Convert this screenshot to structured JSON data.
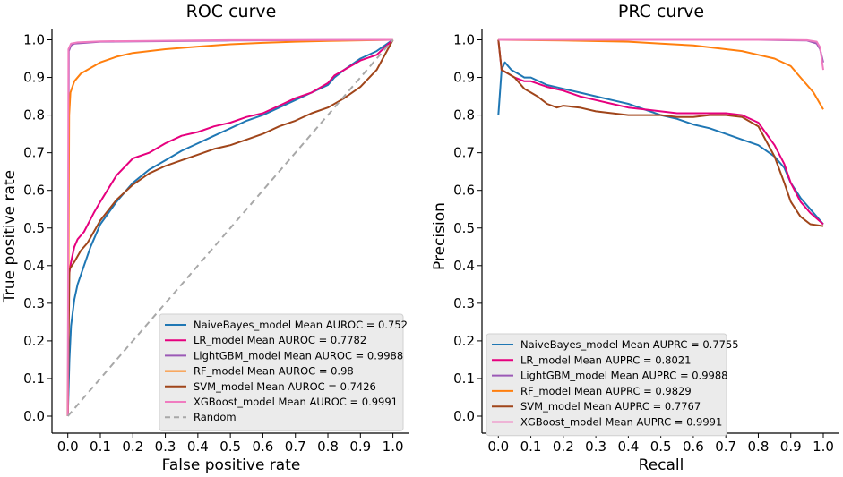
{
  "chart_data": [
    {
      "type": "line",
      "title": "ROC curve",
      "xlabel": "False positive rate",
      "ylabel": "True positive rate",
      "xlim": [
        0,
        1
      ],
      "ylim": [
        0,
        1
      ],
      "x_ticks": [
        "0.0",
        "0.1",
        "0.2",
        "0.3",
        "0.4",
        "0.5",
        "0.6",
        "0.7",
        "0.8",
        "0.9",
        "1.0"
      ],
      "y_ticks": [
        "0.0",
        "0.1",
        "0.2",
        "0.3",
        "0.4",
        "0.5",
        "0.6",
        "0.7",
        "0.8",
        "0.9",
        "1.0"
      ],
      "legend_position": "bottom-right",
      "series": [
        {
          "name": "NaiveBayes_model Mean AUROC = 0.752",
          "color": "#1f77b4",
          "points": [
            [
              0,
              0
            ],
            [
              0.005,
              0.15
            ],
            [
              0.01,
              0.24
            ],
            [
              0.02,
              0.31
            ],
            [
              0.03,
              0.35
            ],
            [
              0.05,
              0.4
            ],
            [
              0.07,
              0.45
            ],
            [
              0.1,
              0.51
            ],
            [
              0.15,
              0.57
            ],
            [
              0.2,
              0.62
            ],
            [
              0.25,
              0.655
            ],
            [
              0.3,
              0.68
            ],
            [
              0.35,
              0.705
            ],
            [
              0.4,
              0.725
            ],
            [
              0.45,
              0.745
            ],
            [
              0.5,
              0.765
            ],
            [
              0.55,
              0.785
            ],
            [
              0.6,
              0.8
            ],
            [
              0.65,
              0.82
            ],
            [
              0.7,
              0.84
            ],
            [
              0.75,
              0.86
            ],
            [
              0.8,
              0.88
            ],
            [
              0.82,
              0.9
            ],
            [
              0.85,
              0.92
            ],
            [
              0.9,
              0.95
            ],
            [
              0.95,
              0.97
            ],
            [
              1.0,
              1.0
            ]
          ]
        },
        {
          "name": "LR_model Mean AUROC = 0.7782",
          "color": "#e6007e",
          "points": [
            [
              0,
              0
            ],
            [
              0.003,
              0.37
            ],
            [
              0.01,
              0.41
            ],
            [
              0.02,
              0.45
            ],
            [
              0.03,
              0.47
            ],
            [
              0.05,
              0.49
            ],
            [
              0.08,
              0.54
            ],
            [
              0.1,
              0.57
            ],
            [
              0.15,
              0.64
            ],
            [
              0.2,
              0.685
            ],
            [
              0.25,
              0.7
            ],
            [
              0.3,
              0.725
            ],
            [
              0.35,
              0.745
            ],
            [
              0.4,
              0.755
            ],
            [
              0.45,
              0.77
            ],
            [
              0.5,
              0.78
            ],
            [
              0.55,
              0.795
            ],
            [
              0.6,
              0.805
            ],
            [
              0.65,
              0.825
            ],
            [
              0.7,
              0.845
            ],
            [
              0.75,
              0.86
            ],
            [
              0.8,
              0.885
            ],
            [
              0.82,
              0.905
            ],
            [
              0.85,
              0.92
            ],
            [
              0.9,
              0.945
            ],
            [
              0.95,
              0.96
            ],
            [
              1.0,
              1.0
            ]
          ]
        },
        {
          "name": "LightGBM_model Mean AUROC = 0.9988",
          "color": "#9b59b6",
          "points": [
            [
              0,
              0
            ],
            [
              0.003,
              0.97
            ],
            [
              0.01,
              0.985
            ],
            [
              0.02,
              0.99
            ],
            [
              0.1,
              0.995
            ],
            [
              0.5,
              0.998
            ],
            [
              1.0,
              1.0
            ]
          ]
        },
        {
          "name": "RF_model Mean AUROC = 0.98",
          "color": "#ff7f0e",
          "points": [
            [
              0,
              0
            ],
            [
              0.004,
              0.8
            ],
            [
              0.008,
              0.86
            ],
            [
              0.02,
              0.89
            ],
            [
              0.04,
              0.91
            ],
            [
              0.07,
              0.925
            ],
            [
              0.1,
              0.94
            ],
            [
              0.15,
              0.955
            ],
            [
              0.2,
              0.965
            ],
            [
              0.3,
              0.975
            ],
            [
              0.4,
              0.982
            ],
            [
              0.5,
              0.988
            ],
            [
              0.6,
              0.992
            ],
            [
              0.7,
              0.995
            ],
            [
              0.8,
              0.997
            ],
            [
              1.0,
              1.0
            ]
          ]
        },
        {
          "name": "SVM_model Mean AUROC = 0.7426",
          "color": "#a0451a",
          "points": [
            [
              0,
              0
            ],
            [
              0.005,
              0.39
            ],
            [
              0.02,
              0.41
            ],
            [
              0.04,
              0.44
            ],
            [
              0.06,
              0.46
            ],
            [
              0.1,
              0.52
            ],
            [
              0.15,
              0.575
            ],
            [
              0.2,
              0.615
            ],
            [
              0.25,
              0.645
            ],
            [
              0.3,
              0.665
            ],
            [
              0.35,
              0.68
            ],
            [
              0.4,
              0.695
            ],
            [
              0.45,
              0.71
            ],
            [
              0.5,
              0.72
            ],
            [
              0.55,
              0.735
            ],
            [
              0.6,
              0.75
            ],
            [
              0.65,
              0.77
            ],
            [
              0.7,
              0.785
            ],
            [
              0.75,
              0.805
            ],
            [
              0.8,
              0.82
            ],
            [
              0.85,
              0.845
            ],
            [
              0.9,
              0.875
            ],
            [
              0.95,
              0.92
            ],
            [
              1.0,
              1.0
            ]
          ]
        },
        {
          "name": "XGBoost_model Mean AUROC = 0.9991",
          "color": "#f07cc0",
          "points": [
            [
              0,
              0
            ],
            [
              0.002,
              0.975
            ],
            [
              0.01,
              0.99
            ],
            [
              0.03,
              0.993
            ],
            [
              0.1,
              0.996
            ],
            [
              0.5,
              0.999
            ],
            [
              1.0,
              1.0
            ]
          ]
        },
        {
          "name": "Random",
          "color": "#a8a8a8",
          "dashed": true,
          "points": [
            [
              0,
              0
            ],
            [
              1,
              1
            ]
          ]
        }
      ]
    },
    {
      "type": "line",
      "title": "PRC curve",
      "xlabel": "Recall",
      "ylabel": "Precision",
      "xlim": [
        0,
        1
      ],
      "ylim": [
        0,
        1
      ],
      "x_ticks": [
        "0.0",
        "0.1",
        "0.2",
        "0.3",
        "0.4",
        "0.5",
        "0.6",
        "0.7",
        "0.8",
        "0.9",
        "1.0"
      ],
      "y_ticks": [
        "0.0",
        "0.1",
        "0.2",
        "0.3",
        "0.4",
        "0.5",
        "0.6",
        "0.7",
        "0.8",
        "0.9",
        "1.0"
      ],
      "legend_position": "bottom-left",
      "series": [
        {
          "name": "NaiveBayes_model Mean AUPRC = 0.7755",
          "color": "#1f77b4",
          "points": [
            [
              0,
              0.8
            ],
            [
              0.01,
              0.92
            ],
            [
              0.02,
              0.94
            ],
            [
              0.04,
              0.92
            ],
            [
              0.06,
              0.91
            ],
            [
              0.08,
              0.9
            ],
            [
              0.1,
              0.9
            ],
            [
              0.15,
              0.88
            ],
            [
              0.2,
              0.87
            ],
            [
              0.25,
              0.86
            ],
            [
              0.3,
              0.85
            ],
            [
              0.35,
              0.84
            ],
            [
              0.4,
              0.83
            ],
            [
              0.45,
              0.815
            ],
            [
              0.5,
              0.8
            ],
            [
              0.55,
              0.79
            ],
            [
              0.6,
              0.775
            ],
            [
              0.65,
              0.765
            ],
            [
              0.7,
              0.75
            ],
            [
              0.75,
              0.735
            ],
            [
              0.8,
              0.72
            ],
            [
              0.85,
              0.69
            ],
            [
              0.88,
              0.66
            ],
            [
              0.9,
              0.62
            ],
            [
              0.93,
              0.58
            ],
            [
              0.96,
              0.55
            ],
            [
              1.0,
              0.51
            ]
          ]
        },
        {
          "name": "LR_model Mean AUPRC = 0.8021",
          "color": "#e6007e",
          "points": [
            [
              0,
              1.0
            ],
            [
              0.01,
              0.92
            ],
            [
              0.03,
              0.91
            ],
            [
              0.05,
              0.9
            ],
            [
              0.08,
              0.89
            ],
            [
              0.1,
              0.89
            ],
            [
              0.15,
              0.875
            ],
            [
              0.2,
              0.865
            ],
            [
              0.25,
              0.85
            ],
            [
              0.3,
              0.84
            ],
            [
              0.35,
              0.83
            ],
            [
              0.4,
              0.82
            ],
            [
              0.45,
              0.815
            ],
            [
              0.5,
              0.81
            ],
            [
              0.55,
              0.805
            ],
            [
              0.6,
              0.805
            ],
            [
              0.65,
              0.805
            ],
            [
              0.7,
              0.805
            ],
            [
              0.75,
              0.8
            ],
            [
              0.8,
              0.78
            ],
            [
              0.85,
              0.72
            ],
            [
              0.88,
              0.67
            ],
            [
              0.9,
              0.62
            ],
            [
              0.93,
              0.57
            ],
            [
              0.96,
              0.54
            ],
            [
              1.0,
              0.51
            ]
          ]
        },
        {
          "name": "LightGBM_model Mean AUPRC = 0.9988",
          "color": "#9b59b6",
          "points": [
            [
              0,
              1.0
            ],
            [
              0.2,
              1.0
            ],
            [
              0.5,
              1.0
            ],
            [
              0.8,
              1.0
            ],
            [
              0.95,
              0.998
            ],
            [
              0.98,
              0.99
            ],
            [
              0.99,
              0.975
            ],
            [
              1.0,
              0.94
            ]
          ]
        },
        {
          "name": "RF_model Mean AUPRC = 0.9829",
          "color": "#ff7f0e",
          "points": [
            [
              0,
              1.0
            ],
            [
              0.2,
              0.998
            ],
            [
              0.4,
              0.995
            ],
            [
              0.5,
              0.99
            ],
            [
              0.6,
              0.985
            ],
            [
              0.7,
              0.975
            ],
            [
              0.75,
              0.97
            ],
            [
              0.8,
              0.96
            ],
            [
              0.85,
              0.95
            ],
            [
              0.9,
              0.93
            ],
            [
              0.93,
              0.9
            ],
            [
              0.95,
              0.88
            ],
            [
              0.97,
              0.86
            ],
            [
              0.99,
              0.83
            ],
            [
              1.0,
              0.815
            ]
          ]
        },
        {
          "name": "SVM_model Mean AUPRC = 0.7767",
          "color": "#a0451a",
          "points": [
            [
              0,
              1.0
            ],
            [
              0.01,
              0.92
            ],
            [
              0.03,
              0.91
            ],
            [
              0.05,
              0.9
            ],
            [
              0.08,
              0.87
            ],
            [
              0.1,
              0.86
            ],
            [
              0.12,
              0.85
            ],
            [
              0.15,
              0.83
            ],
            [
              0.18,
              0.82
            ],
            [
              0.2,
              0.825
            ],
            [
              0.25,
              0.82
            ],
            [
              0.3,
              0.81
            ],
            [
              0.35,
              0.805
            ],
            [
              0.4,
              0.8
            ],
            [
              0.45,
              0.8
            ],
            [
              0.5,
              0.8
            ],
            [
              0.55,
              0.795
            ],
            [
              0.6,
              0.795
            ],
            [
              0.65,
              0.8
            ],
            [
              0.7,
              0.8
            ],
            [
              0.75,
              0.795
            ],
            [
              0.8,
              0.77
            ],
            [
              0.85,
              0.69
            ],
            [
              0.88,
              0.62
            ],
            [
              0.9,
              0.57
            ],
            [
              0.93,
              0.53
            ],
            [
              0.96,
              0.51
            ],
            [
              1.0,
              0.505
            ]
          ]
        },
        {
          "name": "XGBoost_model Mean AUPRC = 0.9991",
          "color": "#f07cc0",
          "points": [
            [
              0,
              1.0
            ],
            [
              0.3,
              1.0
            ],
            [
              0.6,
              1.0
            ],
            [
              0.85,
              1.0
            ],
            [
              0.95,
              0.999
            ],
            [
              0.98,
              0.995
            ],
            [
              0.99,
              0.98
            ],
            [
              1.0,
              0.92
            ]
          ]
        }
      ]
    }
  ]
}
